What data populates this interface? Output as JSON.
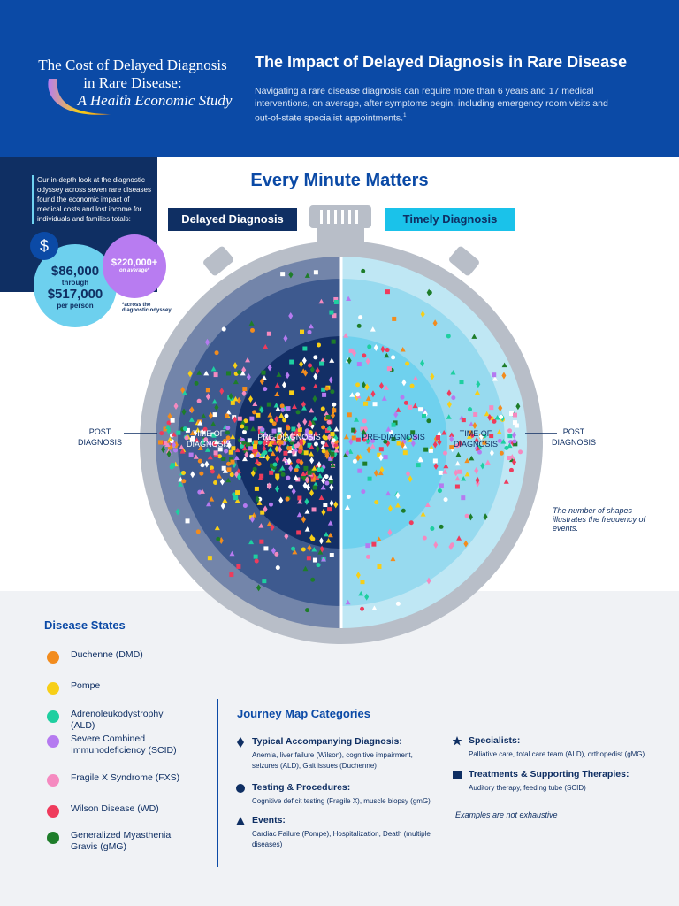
{
  "header": {
    "study_title_1": "The Cost of Delayed Diagnosis",
    "study_title_2": "in Rare Disease:",
    "study_subtitle": "A Health Economic Study",
    "heading": "The Impact of Delayed Diagnosis in Rare Disease",
    "description": "Navigating a rare disease diagnosis can require more than 6 years and 17 medical interventions, on average, after symptoms begin, including emergency room visits and out-of-state specialist appointments.",
    "footnote_mark": "1"
  },
  "sidebar": {
    "text": "Our in-depth look at the diagnostic odyssey across seven rare diseases found the economic impact of medical costs and lost income for individuals and families totals:",
    "symbol": "$",
    "low": "$86,000",
    "through": "through",
    "high": "$517,000",
    "per": "per person",
    "average": "$220,000+",
    "average_note": "on average*",
    "footnote": "*across the diagnostic odyssey"
  },
  "main": {
    "title": "Every Minute Matters",
    "delayed": "Delayed Diagnosis",
    "timely": "Timely Diagnosis",
    "post_left": "POST DIAGNOSIS",
    "time_left": "TIME OF DIAGNOSIS",
    "pre_left": "PRE-DIAGNOSIS",
    "pre_right": "PRE-DIAGNOSIS",
    "time_right": "TIME OF DIAGNOSIS",
    "post_right": "POST DIAGNOSIS",
    "note": "The number of shapes illustrates the frequency of events."
  },
  "disease_states": {
    "title": "Disease States",
    "items": [
      {
        "label": "Duchenne (DMD)",
        "color": "#f28c1e"
      },
      {
        "label": "Pompe",
        "color": "#f7cf17"
      },
      {
        "label": "Adrenoleukodystrophy (ALD)",
        "color": "#1ecfa0"
      },
      {
        "label": "Severe Combined Immunodeficiency (SCID)",
        "color": "#b57af0"
      },
      {
        "label": "Fragile X Syndrome (FXS)",
        "color": "#f58ac0"
      },
      {
        "label": "Wilson Disease (WD)",
        "color": "#ef3b5c"
      },
      {
        "label": "Generalized Myasthenia Gravis (gMG)",
        "color": "#1e7d2a"
      }
    ]
  },
  "journey": {
    "title": "Journey Map Categories",
    "items": [
      {
        "title": "Typical Accompanying Diagnosis:",
        "text": "Anemia, liver failure (Wilson), cognitive impairment, seizures (ALD), Gait issues (Duchenne)"
      },
      {
        "title": "Testing & Procedures:",
        "text": "Cognitive deficit testing (Fragile X), muscle biopsy (gmG)"
      },
      {
        "title": "Events:",
        "text": "Cardiac Failure (Pompe), Hospitalization, Death (multiple diseases)"
      },
      {
        "title": "Specialists:",
        "text": "Palliative care, total care team (ALD), orthopedist (gMG)"
      },
      {
        "title": "Treatments & Supporting Therapies:",
        "text": "Auditory therapy, feeding tube (SCID)"
      }
    ],
    "note": "Examples are not exhaustive"
  }
}
